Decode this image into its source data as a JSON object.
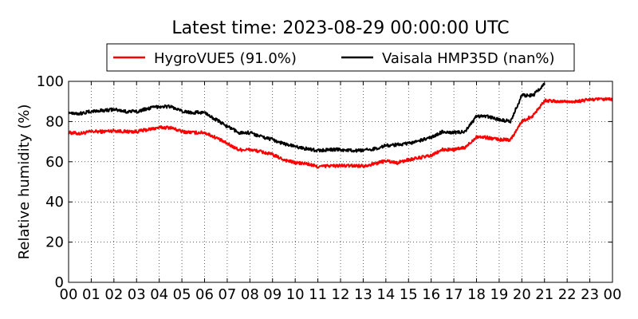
{
  "chart_data": {
    "type": "line",
    "title": "Latest time: 2023-08-29 00:00:00 UTC",
    "xlabel": "",
    "ylabel": "Relative humidity (%)",
    "x_tick_labels": [
      "00",
      "01",
      "02",
      "03",
      "04",
      "05",
      "06",
      "07",
      "08",
      "09",
      "10",
      "11",
      "12",
      "13",
      "14",
      "15",
      "16",
      "17",
      "18",
      "19",
      "20",
      "21",
      "22",
      "23",
      "00"
    ],
    "y_ticks": [
      0,
      20,
      40,
      60,
      80,
      100
    ],
    "xlim_hours": [
      0,
      24
    ],
    "ylim": [
      0,
      100
    ],
    "grid": true,
    "legend_position": "top-center",
    "series": [
      {
        "name": "HygroVUE5 (91.0%)",
        "color": "#ff0000",
        "x": [
          0,
          0.5,
          1,
          1.5,
          2,
          2.5,
          3,
          3.5,
          4,
          4.5,
          5,
          5.5,
          6,
          6.5,
          7,
          7.5,
          8,
          8.5,
          9,
          9.5,
          10,
          10.5,
          11,
          11.5,
          12,
          12.5,
          13,
          13.5,
          14,
          14.5,
          15,
          15.5,
          16,
          16.5,
          17,
          17.5,
          18,
          18.5,
          19,
          19.5,
          20,
          20.5,
          21,
          21.5,
          22,
          22.5,
          23,
          23.5,
          24
        ],
        "y": [
          74.5,
          74,
          75,
          75,
          75.5,
          75,
          75,
          76,
          77,
          77,
          75,
          74.5,
          74.5,
          72,
          69,
          66,
          66,
          65,
          63.5,
          61,
          59.5,
          59,
          57.5,
          58,
          58,
          58,
          58,
          59,
          60.5,
          59.5,
          61,
          62,
          63,
          66,
          66,
          67,
          72.5,
          72,
          71,
          71,
          80,
          83,
          90.5,
          90,
          90,
          90,
          91,
          91,
          91
        ]
      },
      {
        "name": "Vaisala HMP35D (nan%)",
        "color": "#000000",
        "x": [
          0,
          0.5,
          1,
          1.5,
          2,
          2.5,
          3,
          3.5,
          4,
          4.5,
          5,
          5.5,
          6,
          6.5,
          7,
          7.5,
          8,
          8.5,
          9,
          9.5,
          10,
          10.5,
          11,
          11.5,
          12,
          12.5,
          13,
          13.5,
          14,
          14.5,
          15,
          15.5,
          16,
          16.5,
          17,
          17.5,
          18,
          18.5,
          19,
          19.5,
          20,
          20.5,
          21
        ],
        "y": [
          84.5,
          84,
          85,
          85.5,
          86,
          85,
          85,
          86.5,
          87.5,
          87.5,
          85,
          84.5,
          84.5,
          81,
          77.5,
          74.5,
          74.5,
          72.5,
          71,
          69,
          67.5,
          66.5,
          65.5,
          66,
          66,
          65.5,
          65.5,
          66.5,
          68,
          68.5,
          69,
          70.5,
          72,
          75,
          74.5,
          75,
          82.5,
          82.5,
          81,
          80,
          93,
          93,
          99
        ]
      }
    ]
  }
}
